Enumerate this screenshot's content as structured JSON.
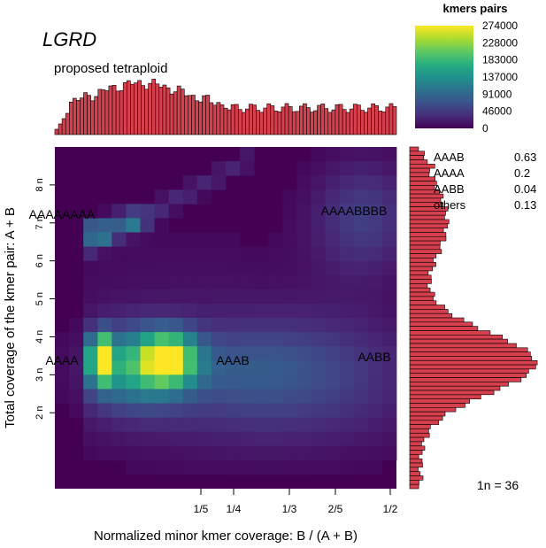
{
  "chart_data": {
    "type": "heatmap",
    "title": "LGRD",
    "subtitle": "proposed tetraploid",
    "xlabel": "Normalized minor kmer coverage: B / (A + B)",
    "ylabel": "Total coverage of the kmer pair: A + B",
    "x_ticks": [
      "1/5",
      "1/4",
      "1/3",
      "2/5",
      "1/2"
    ],
    "x_tick_values": [
      0.2,
      0.25,
      0.3333,
      0.4,
      0.5
    ],
    "y_ticks": [
      "2 n",
      "3 n",
      "4 n",
      "5 n",
      "6 n",
      "7 n",
      "8 n"
    ],
    "y_tick_values": [
      2,
      3,
      4,
      5,
      6,
      7,
      8
    ],
    "xlim": [
      0,
      0.5
    ],
    "ylim": [
      0,
      9
    ],
    "legend": {
      "title": "kmers pairs",
      "placement": "top-right",
      "ticks": [
        "274000",
        "228000",
        "183000",
        "137000",
        "91000",
        "46000",
        "0"
      ],
      "max": 274000
    },
    "peak_labels": [
      {
        "text": "AAAA",
        "x": 0.01,
        "y": 3.9
      },
      {
        "text": "AAAB",
        "x": 0.25,
        "y": 3.9
      },
      {
        "text": "AABB",
        "x": 0.49,
        "y": 3.95
      },
      {
        "text": "AAAAAAAA",
        "x": 0.01,
        "y": 7.3
      },
      {
        "text": "AAAABBBB",
        "x": 0.44,
        "y": 7.4
      }
    ],
    "proportions": [
      {
        "label": "AAAB",
        "value": "0.63"
      },
      {
        "label": "AAAA",
        "value": "0.2"
      },
      {
        "label": "AABB",
        "value": "0.04"
      },
      {
        "label": "others",
        "value": "0.13"
      }
    ],
    "note": "1n =  36",
    "colors": {
      "bars": "#d6404e",
      "background": "#440154"
    }
  }
}
